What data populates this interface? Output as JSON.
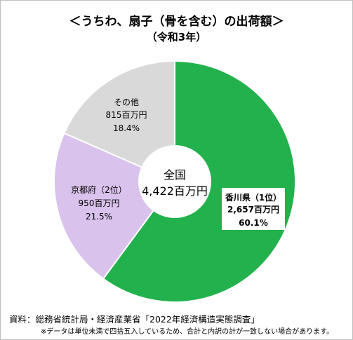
{
  "chart_data": {
    "type": "pie",
    "title": "＜うちわ、扇子（骨を含む）の出荷額＞",
    "subtitle": "（令和3年）",
    "center_label": [
      "全国",
      "4,422百万円"
    ],
    "slices": [
      {
        "name": "香川県（1位）",
        "value_text": "2,657百万円",
        "percent_text": "60.1%",
        "value": 2657,
        "percent": 60.1,
        "color": "#22b14c"
      },
      {
        "name": "京都府（2位）",
        "value_text": "950百万円",
        "percent_text": "21.5%",
        "value": 950,
        "percent": 21.5,
        "color": "#d9c2ec"
      },
      {
        "name": "その他",
        "value_text": "815百万円",
        "percent_text": "18.4%",
        "value": 815,
        "percent": 18.4,
        "color": "#d9d9d9"
      }
    ]
  },
  "source": "資料：総務省統計局・経済産業省「2022年経済構造実態調査」",
  "note": "※データは単位未満で四捨五入しているため、合計と内訳の計が一致しない場合があります。"
}
